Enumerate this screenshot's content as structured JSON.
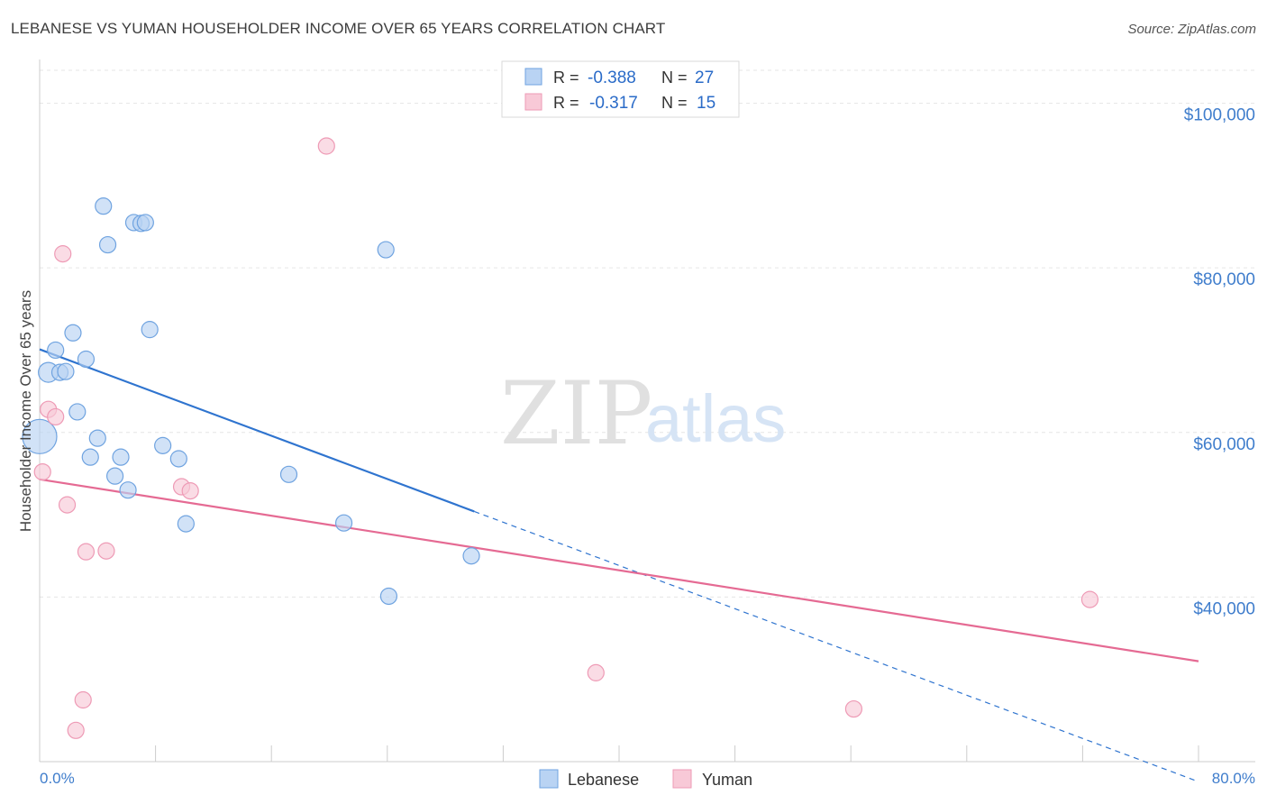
{
  "header": {
    "title": "LEBANESE VS YUMAN HOUSEHOLDER INCOME OVER 65 YEARS CORRELATION CHART",
    "source": "Source: ZipAtlas.com"
  },
  "watermark": {
    "part1": "ZIP",
    "part2": "atlas"
  },
  "chart_data": {
    "type": "scatter",
    "xlabel": "",
    "ylabel": "Householder Income Over 65 years",
    "xlim": [
      0,
      80
    ],
    "ylim": [
      20000,
      104000
    ],
    "x_tick_labels": [
      "0.0%",
      "80.0%"
    ],
    "y_ticks": [
      40000,
      60000,
      80000,
      100000
    ],
    "y_tick_labels": [
      "$40,000",
      "$60,000",
      "$80,000",
      "$100,000"
    ],
    "grid": true,
    "legend_position": "bottom",
    "stats": [
      {
        "r_label": "R =",
        "r_value": "-0.388",
        "n_label": "N =",
        "n_value": "27"
      },
      {
        "r_label": "R =",
        "r_value": "-0.317",
        "n_label": "N =",
        "n_value": "15"
      }
    ],
    "series": [
      {
        "name": "Lebanese",
        "color": "#6fa3e0",
        "fill": "#b9d3f3",
        "line_color": "#2f74cf",
        "trend": {
          "x0": 0,
          "y0": 70100,
          "x1": 30,
          "y1": 50400,
          "dash_to_x": 80
        },
        "points": [
          {
            "x": 0.0,
            "y": 59500,
            "size": "large"
          },
          {
            "x": 0.6,
            "y": 67300,
            "size": "medium"
          },
          {
            "x": 1.1,
            "y": 70000,
            "size": "normal"
          },
          {
            "x": 1.4,
            "y": 67300,
            "size": "normal"
          },
          {
            "x": 1.8,
            "y": 67400,
            "size": "normal"
          },
          {
            "x": 2.3,
            "y": 72100,
            "size": "normal"
          },
          {
            "x": 2.6,
            "y": 62500,
            "size": "normal"
          },
          {
            "x": 3.2,
            "y": 68900,
            "size": "normal"
          },
          {
            "x": 3.5,
            "y": 57000,
            "size": "normal"
          },
          {
            "x": 4.0,
            "y": 59300,
            "size": "normal"
          },
          {
            "x": 4.4,
            "y": 87500,
            "size": "normal"
          },
          {
            "x": 4.7,
            "y": 82800,
            "size": "normal"
          },
          {
            "x": 5.2,
            "y": 54700,
            "size": "normal"
          },
          {
            "x": 5.6,
            "y": 57000,
            "size": "normal"
          },
          {
            "x": 6.1,
            "y": 53000,
            "size": "normal"
          },
          {
            "x": 6.5,
            "y": 85500,
            "size": "normal"
          },
          {
            "x": 7.0,
            "y": 85400,
            "size": "normal"
          },
          {
            "x": 7.3,
            "y": 85500,
            "size": "normal"
          },
          {
            "x": 7.6,
            "y": 72500,
            "size": "normal"
          },
          {
            "x": 8.5,
            "y": 58400,
            "size": "normal"
          },
          {
            "x": 9.6,
            "y": 56800,
            "size": "normal"
          },
          {
            "x": 10.1,
            "y": 48900,
            "size": "normal"
          },
          {
            "x": 17.2,
            "y": 54900,
            "size": "normal"
          },
          {
            "x": 21.0,
            "y": 49000,
            "size": "normal"
          },
          {
            "x": 23.9,
            "y": 82200,
            "size": "normal"
          },
          {
            "x": 24.1,
            "y": 40100,
            "size": "normal"
          },
          {
            "x": 29.8,
            "y": 45000,
            "size": "normal"
          }
        ]
      },
      {
        "name": "Yuman",
        "color": "#ee9ab5",
        "fill": "#f8c9d7",
        "line_color": "#e56a93",
        "trend": {
          "x0": 0,
          "y0": 54300,
          "x1": 80,
          "y1": 32200
        },
        "points": [
          {
            "x": 0.2,
            "y": 55200,
            "size": "normal"
          },
          {
            "x": 0.6,
            "y": 62800,
            "size": "normal"
          },
          {
            "x": 1.1,
            "y": 61900,
            "size": "normal"
          },
          {
            "x": 1.6,
            "y": 81700,
            "size": "normal"
          },
          {
            "x": 1.9,
            "y": 51200,
            "size": "normal"
          },
          {
            "x": 2.5,
            "y": 23800,
            "size": "normal"
          },
          {
            "x": 3.0,
            "y": 27500,
            "size": "normal"
          },
          {
            "x": 3.2,
            "y": 45500,
            "size": "normal"
          },
          {
            "x": 4.6,
            "y": 45600,
            "size": "normal"
          },
          {
            "x": 9.8,
            "y": 53400,
            "size": "normal"
          },
          {
            "x": 10.4,
            "y": 52900,
            "size": "normal"
          },
          {
            "x": 19.8,
            "y": 94800,
            "size": "normal"
          },
          {
            "x": 38.4,
            "y": 30800,
            "size": "normal"
          },
          {
            "x": 56.2,
            "y": 26400,
            "size": "normal"
          },
          {
            "x": 72.5,
            "y": 39700,
            "size": "normal"
          }
        ]
      }
    ]
  }
}
